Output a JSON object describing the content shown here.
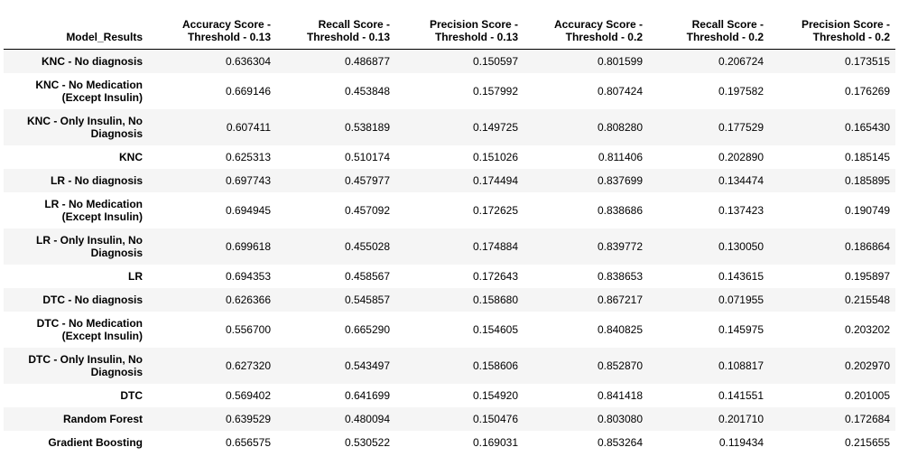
{
  "table": {
    "index_header": "Model_Results",
    "columns": [
      [
        "Accuracy Score -",
        "Threshold - 0.13"
      ],
      [
        "Recall Score -",
        "Threshold - 0.13"
      ],
      [
        "Precision Score -",
        "Threshold - 0.13"
      ],
      [
        "Accuracy Score -",
        "Threshold - 0.2"
      ],
      [
        "Recall Score -",
        "Threshold - 0.2"
      ],
      [
        "Precision Score -",
        "Threshold - 0.2"
      ]
    ],
    "rows": [
      {
        "label": [
          "KNC - No diagnosis"
        ],
        "values": [
          "0.636304",
          "0.486877",
          "0.150597",
          "0.801599",
          "0.206724",
          "0.173515"
        ]
      },
      {
        "label": [
          "KNC - No Medication",
          "(Except Insulin)"
        ],
        "values": [
          "0.669146",
          "0.453848",
          "0.157992",
          "0.807424",
          "0.197582",
          "0.176269"
        ]
      },
      {
        "label": [
          "KNC - Only Insulin, No",
          "Diagnosis"
        ],
        "values": [
          "0.607411",
          "0.538189",
          "0.149725",
          "0.808280",
          "0.177529",
          "0.165430"
        ]
      },
      {
        "label": [
          "KNC"
        ],
        "values": [
          "0.625313",
          "0.510174",
          "0.151026",
          "0.811406",
          "0.202890",
          "0.185145"
        ]
      },
      {
        "label": [
          "LR - No diagnosis"
        ],
        "values": [
          "0.697743",
          "0.457977",
          "0.174494",
          "0.837699",
          "0.134474",
          "0.185895"
        ]
      },
      {
        "label": [
          "LR - No Medication",
          "(Except Insulin)"
        ],
        "values": [
          "0.694945",
          "0.457092",
          "0.172625",
          "0.838686",
          "0.137423",
          "0.190749"
        ]
      },
      {
        "label": [
          "LR - Only Insulin, No",
          "Diagnosis"
        ],
        "values": [
          "0.699618",
          "0.455028",
          "0.174884",
          "0.839772",
          "0.130050",
          "0.186864"
        ]
      },
      {
        "label": [
          "LR"
        ],
        "values": [
          "0.694353",
          "0.458567",
          "0.172643",
          "0.838653",
          "0.143615",
          "0.195897"
        ]
      },
      {
        "label": [
          "DTC - No diagnosis"
        ],
        "values": [
          "0.626366",
          "0.545857",
          "0.158680",
          "0.867217",
          "0.071955",
          "0.215548"
        ]
      },
      {
        "label": [
          "DTC - No Medication",
          "(Except Insulin)"
        ],
        "values": [
          "0.556700",
          "0.665290",
          "0.154605",
          "0.840825",
          "0.145975",
          "0.203202"
        ]
      },
      {
        "label": [
          "DTC - Only Insulin, No",
          "Diagnosis"
        ],
        "values": [
          "0.627320",
          "0.543497",
          "0.158606",
          "0.852870",
          "0.108817",
          "0.202970"
        ]
      },
      {
        "label": [
          "DTC"
        ],
        "values": [
          "0.569402",
          "0.641699",
          "0.154920",
          "0.841418",
          "0.141551",
          "0.201005"
        ]
      },
      {
        "label": [
          "Random Forest"
        ],
        "values": [
          "0.639529",
          "0.480094",
          "0.150476",
          "0.803080",
          "0.201710",
          "0.172684"
        ]
      },
      {
        "label": [
          "Gradient Boosting"
        ],
        "values": [
          "0.656575",
          "0.530522",
          "0.169031",
          "0.853264",
          "0.119434",
          "0.215655"
        ]
      }
    ]
  }
}
